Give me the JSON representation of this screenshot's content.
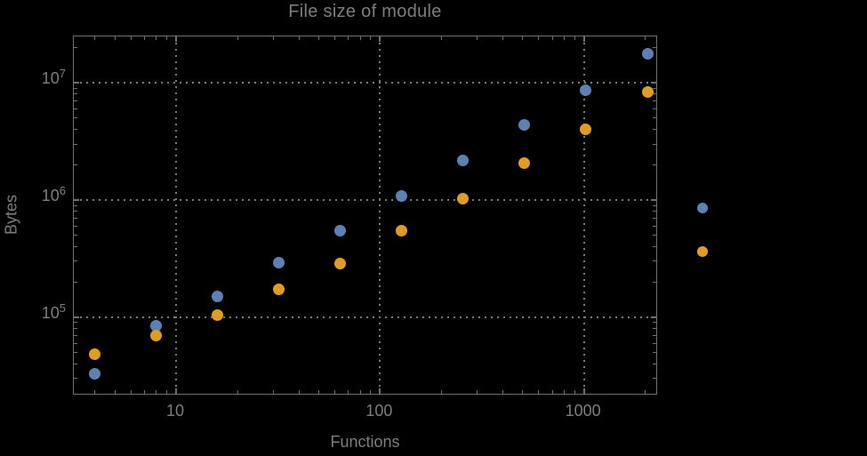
{
  "title": "File size of module",
  "colors": {
    "background": "#000000",
    "text": "#7d7d7d",
    "frame": "#6f6f6f",
    "grid": "#7a7a7a",
    "series_blue": "#5e81b5",
    "series_orange": "#e19c24"
  },
  "chart_data": {
    "type": "scatter",
    "title": "File size of module",
    "xlabel": "Functions",
    "ylabel": "Bytes",
    "x_scale": "log",
    "y_scale": "log",
    "xlim": [
      3.15,
      2310
    ],
    "ylim": [
      21500,
      24800000
    ],
    "grid": "dotted, at decade lines only",
    "x": [
      4,
      8,
      16,
      32,
      64,
      128,
      256,
      512,
      1024,
      2048
    ],
    "series": [
      {
        "name": "blue",
        "color": "#5e81b5",
        "values": [
          33000,
          85000,
          150000,
          290000,
          545000,
          1090000,
          2190000,
          4400000,
          8700000,
          17500000
        ]
      },
      {
        "name": "orange",
        "color": "#e19c24",
        "values": [
          48000,
          70000,
          105000,
          172000,
          285000,
          545000,
          1030000,
          2050000,
          4030000,
          8260000
        ]
      }
    ],
    "x_ticks": [
      {
        "value": 10,
        "label": "10"
      },
      {
        "value": 100,
        "label": "100"
      },
      {
        "value": 1000,
        "label": "1000"
      }
    ],
    "y_ticks": [
      {
        "value": 100000,
        "base": "10",
        "exp": "5"
      },
      {
        "value": 1000000,
        "base": "10",
        "exp": "6"
      },
      {
        "value": 10000000,
        "base": "10",
        "exp": "7"
      }
    ],
    "legend": {
      "position": "outside right of frame",
      "markers": [
        {
          "name": "blue",
          "color": "#5e81b5",
          "label": ""
        },
        {
          "name": "orange",
          "color": "#e19c24",
          "label": ""
        }
      ]
    }
  }
}
